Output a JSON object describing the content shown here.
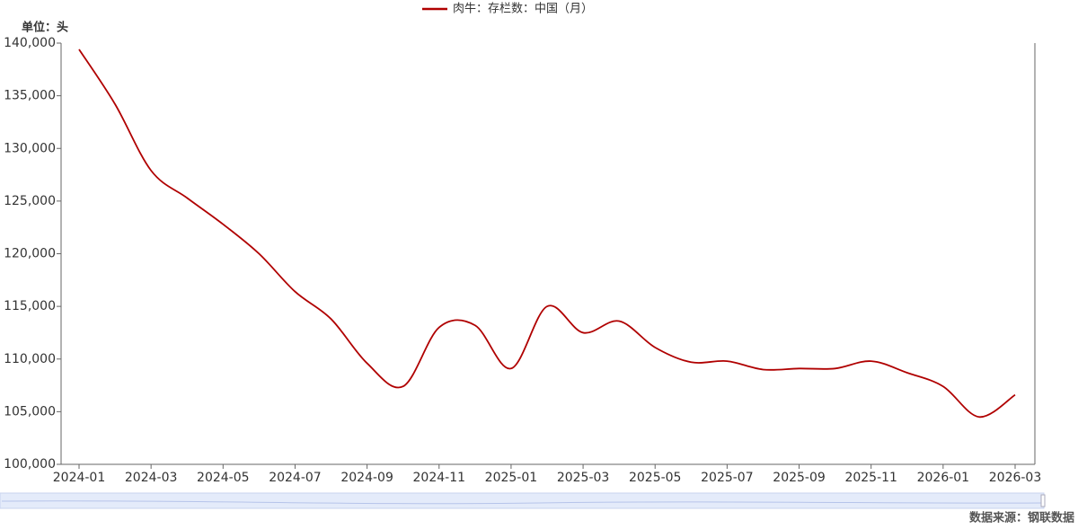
{
  "chart_data": {
    "type": "line",
    "legend": "肉牛：存栏数：中国（月）",
    "unit": "单位：头",
    "source": "数据来源：钢联数据",
    "categories": [
      "2024-01",
      null,
      "2024-03",
      null,
      "2024-05",
      null,
      "2024-07",
      null,
      "2024-09",
      null,
      "2024-11",
      null,
      "2025-01",
      null,
      "2025-03",
      null,
      "2025-05",
      null,
      "2025-07",
      null,
      "2025-09",
      null,
      "2025-11",
      null,
      "2026-01",
      null,
      "2026-03"
    ],
    "series": [
      {
        "name": "肉牛：存栏数：中国（月）",
        "color": "#b00000",
        "values": [
          139400,
          134200,
          127900,
          125300,
          122800,
          120000,
          116400,
          113800,
          109600,
          107400,
          113000,
          113200,
          109100,
          115000,
          112500,
          113600,
          111100,
          109700,
          109800,
          109000,
          109100,
          109100,
          109800,
          108700,
          107400,
          104500,
          106600
        ]
      }
    ],
    "ylim": [
      100000,
      140000
    ],
    "yticks": [
      {
        "value": 100000,
        "label": "100,000"
      },
      {
        "value": 105000,
        "label": "105,000"
      },
      {
        "value": 110000,
        "label": "110,000"
      },
      {
        "value": 115000,
        "label": "115,000"
      },
      {
        "value": 120000,
        "label": "120,000"
      },
      {
        "value": 125000,
        "label": "125,000"
      },
      {
        "value": 130000,
        "label": "130,000"
      },
      {
        "value": 135000,
        "label": "135,000"
      },
      {
        "value": 140000,
        "label": "140,000"
      }
    ],
    "grid": false
  }
}
